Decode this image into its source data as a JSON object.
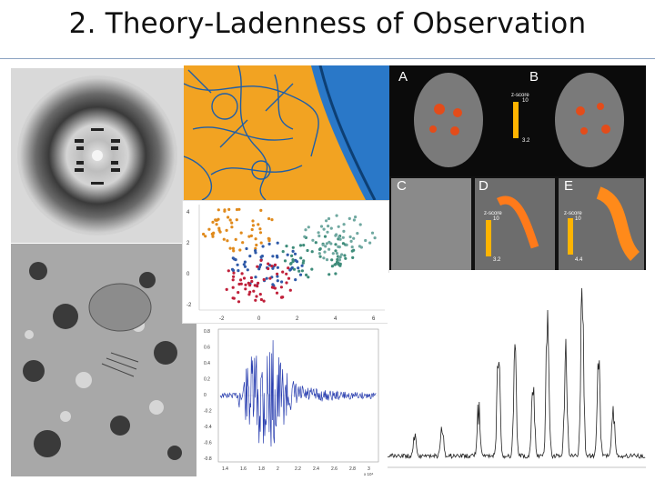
{
  "slide": {
    "title": "2. Theory-Ladenness of Observation"
  },
  "fmri": {
    "labels": [
      "A",
      "B",
      "C",
      "D",
      "E"
    ],
    "zscore_label": "z-score",
    "scales": [
      {
        "max": "10",
        "min": "3.2"
      },
      {
        "max": "10",
        "min": "3.2"
      },
      {
        "max": "10",
        "min": "4.4"
      }
    ]
  },
  "scatter": {
    "xticks": [
      "-2",
      "0",
      "2",
      "4",
      "6"
    ],
    "yticks": [
      "4",
      "2",
      "0",
      "-2"
    ],
    "colors": [
      "#e08a1c",
      "#2f5aa8",
      "#c0203a",
      "#3e8c7a",
      "#6fa8a0"
    ]
  },
  "waveform": {
    "xticks": [
      "1.4",
      "1.6",
      "1.8",
      "2",
      "2.2",
      "2.4",
      "2.6",
      "2.8",
      "3"
    ],
    "x_unit": "x 10⁴",
    "yticks": [
      "0.8",
      "0.6",
      "0.4",
      "0.2",
      "0",
      "-0.2",
      "-0.4",
      "-0.6",
      "-0.8"
    ],
    "color": "#2a3fb0"
  },
  "images": [
    {
      "name": "x-ray-diffraction-image"
    },
    {
      "name": "neuron-micrograph-image"
    },
    {
      "name": "electron-micrograph-image"
    },
    {
      "name": "nmr-spectrum-image"
    }
  ]
}
